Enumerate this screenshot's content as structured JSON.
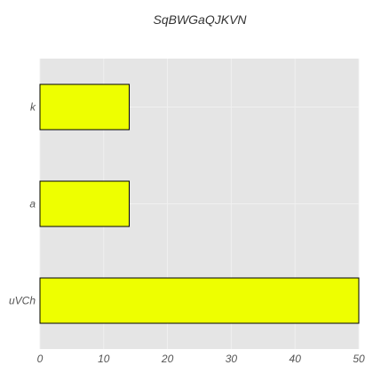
{
  "chart_data": {
    "type": "bar",
    "orientation": "horizontal",
    "title": "SqBWGaQJKVN",
    "xlabel": "",
    "ylabel": "",
    "categories": [
      "uVCh",
      "a",
      "k"
    ],
    "values": [
      50,
      14,
      14
    ],
    "xlim": [
      0,
      50
    ],
    "xticks": [
      0,
      10,
      20,
      30,
      40,
      50
    ],
    "grid": true,
    "legend": "none",
    "bar_color": "#eeff00",
    "bar_edge_color": "#000000",
    "plot_background": "#e5e5e5",
    "grid_color": "#f0f0f0"
  }
}
